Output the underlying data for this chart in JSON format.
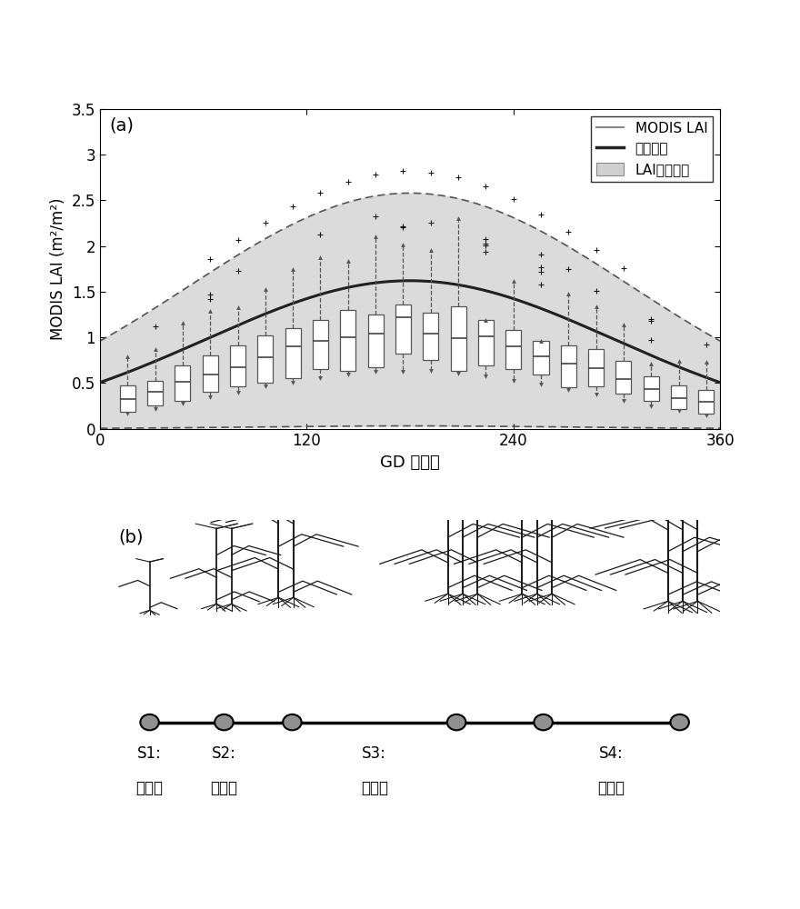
{
  "title_a": "(a)",
  "title_b": "(b)",
  "ylabel": "MODIS LAI (m²/m²)",
  "xlabel": "GD （天）",
  "xlim": [
    0,
    360
  ],
  "ylim": [
    0,
    3.5
  ],
  "xticks": [
    0,
    120,
    240,
    360
  ],
  "ytick_vals": [
    0,
    0.5,
    1.0,
    1.5,
    2.0,
    2.5,
    3.0,
    3.5
  ],
  "ytick_labels": [
    "0",
    "0.5",
    "1",
    "1.5",
    "2",
    "2.5",
    "3",
    "3.5"
  ],
  "curve_color_modis": "#888888",
  "curve_color_fit": "#222222",
  "shade_color": "#d0d0d0",
  "shade_alpha": 0.75,
  "fit_peak": 180,
  "fit_amplitude": 1.62,
  "fit_sigma": 118,
  "upper_amplitude": 2.58,
  "upper_sigma": 128,
  "lower_sigma": 88,
  "lower_near_zero": 0.03,
  "legend_modis": "MODIS LAI",
  "legend_fit": "拟合曲线",
  "legend_shade": "LAI取值范围",
  "background_color": "#ffffff",
  "stage_labels": [
    "S1:",
    "出苗期",
    "S2:",
    "分蘅期",
    "S3:",
    "伸长期",
    "S4:",
    "成熟期"
  ],
  "node_positions_norm": [
    0.08,
    0.2,
    0.31,
    0.575,
    0.715,
    0.935
  ],
  "timeline_y_norm": 0.3
}
